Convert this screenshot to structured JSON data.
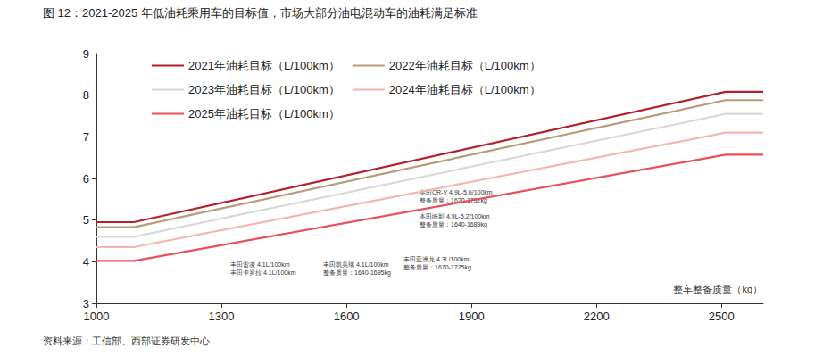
{
  "chart_data": {
    "type": "line",
    "title": "图 12：2021-2025 年低油耗乘用车的目标值，市场大部分油电混动车的油耗满足标准",
    "source": "资料来源：工信部、西部证券研发中心",
    "x_label": "整车整备质量（kg）",
    "xlim": [
      1000,
      2600
    ],
    "xticks": [
      1000,
      1300,
      1600,
      1900,
      2200,
      2500
    ],
    "ylim": [
      3,
      9
    ],
    "yticks": [
      3,
      4,
      5,
      6,
      7,
      8,
      9
    ],
    "grid": false,
    "legend": "top",
    "series": [
      {
        "name": "2021年油耗目标（L/100km）",
        "color": "#b5202e",
        "x": [
          1000,
          1090,
          2510,
          2600
        ],
        "values": [
          4.95,
          4.95,
          8.08,
          8.08
        ]
      },
      {
        "name": "2022年油耗目标（L/100km）",
        "color": "#b89b7a",
        "x": [
          1000,
          1090,
          2510,
          2600
        ],
        "values": [
          4.83,
          4.83,
          7.88,
          7.88
        ]
      },
      {
        "name": "2023年油耗目标（L/100km）",
        "color": "#d9d9d9",
        "x": [
          1000,
          1090,
          2510,
          2600
        ],
        "values": [
          4.6,
          4.6,
          7.55,
          7.55
        ]
      },
      {
        "name": "2024年油耗目标（L/100km）",
        "color": "#f2b8b0",
        "x": [
          1000,
          1090,
          2510,
          2600
        ],
        "values": [
          4.35,
          4.35,
          7.1,
          7.1
        ]
      },
      {
        "name": "2025年油耗目标（L/100km）",
        "color": "#e8505b",
        "x": [
          1000,
          1090,
          2510,
          2600
        ],
        "values": [
          4.02,
          4.02,
          6.57,
          6.57
        ]
      }
    ],
    "annotations": [
      "本田CR-V 4.9L-5.6/100km\n整备质量：1620-1732kg",
      "本田皓影 4.9L-5.2/100km\n整备质量：1640-1689kg",
      "丰田亚洲龙 4.3L/100km\n整备质量：1670-1725kg",
      "丰田凯美瑞 4.1L/100km\n整备质量：1640-1695kg",
      "丰田雷凌 4.1L/100km\n丰田卡罗拉 4.1L/100km"
    ]
  }
}
